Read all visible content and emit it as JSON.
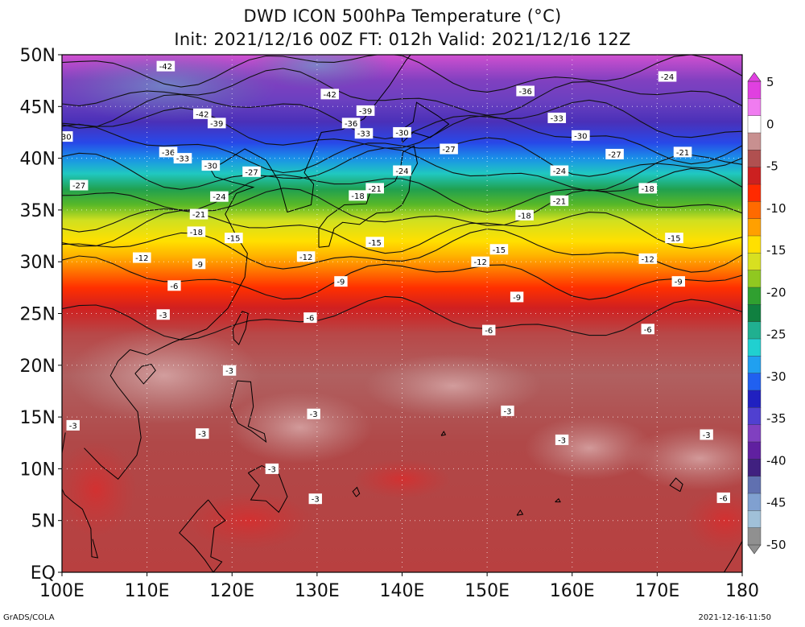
{
  "title": {
    "line1": "DWD ICON 500hPa Temperature (°C)",
    "line2": "Init: 2021/12/16 00Z  FT: 012h  Valid: 2021/12/16 12Z"
  },
  "map": {
    "lon_range": [
      100,
      180
    ],
    "lat_range": [
      0,
      50
    ],
    "x_ticks": [
      {
        "value": 100,
        "label": "100E"
      },
      {
        "value": 110,
        "label": "110E"
      },
      {
        "value": 120,
        "label": "120E"
      },
      {
        "value": 130,
        "label": "130E"
      },
      {
        "value": 140,
        "label": "140E"
      },
      {
        "value": 150,
        "label": "150E"
      },
      {
        "value": 160,
        "label": "160E"
      },
      {
        "value": 170,
        "label": "170E"
      },
      {
        "value": 180,
        "label": "180"
      }
    ],
    "y_ticks": [
      {
        "value": 50,
        "label": "50N"
      },
      {
        "value": 45,
        "label": "45N"
      },
      {
        "value": 40,
        "label": "40N"
      },
      {
        "value": 35,
        "label": "35N"
      },
      {
        "value": 30,
        "label": "30N"
      },
      {
        "value": 25,
        "label": "25N"
      },
      {
        "value": 20,
        "label": "20N"
      },
      {
        "value": 15,
        "label": "15N"
      },
      {
        "value": 10,
        "label": "10N"
      },
      {
        "value": 5,
        "label": "5N"
      },
      {
        "value": 0,
        "label": "EQ"
      }
    ],
    "grid": true
  },
  "colorbar": {
    "labels": [
      "5",
      "0",
      "-5",
      "-10",
      "-15",
      "-20",
      "-25",
      "-30",
      "-35",
      "-40",
      "-45",
      "-50"
    ],
    "bands": [
      "#e040e0",
      "#f07cf0",
      "#ffffff",
      "#c89090",
      "#b05050",
      "#cc2020",
      "#ff2a00",
      "#ff6a00",
      "#ffa000",
      "#ffe000",
      "#d8e020",
      "#90c820",
      "#30a030",
      "#108040",
      "#20b090",
      "#20d0d0",
      "#20a0f0",
      "#2060f0",
      "#2020c0",
      "#5040d0",
      "#8040c0",
      "#6020a0",
      "#402080",
      "#6070b0",
      "#80a0d0",
      "#a0c0d8",
      "#909090"
    ]
  },
  "contour_labels": [
    {
      "lon": 112.2,
      "lat": 48.9,
      "text": "-42"
    },
    {
      "lon": 102,
      "lat": 37.4,
      "text": "-27"
    },
    {
      "lon": 100.5,
      "lat": 42.1,
      "text": "30"
    },
    {
      "lon": 116.5,
      "lat": 44.3,
      "text": "-42"
    },
    {
      "lon": 118.2,
      "lat": 43.4,
      "text": "-39"
    },
    {
      "lon": 112.5,
      "lat": 40.6,
      "text": "-36"
    },
    {
      "lon": 114.2,
      "lat": 40,
      "text": "-33"
    },
    {
      "lon": 117.5,
      "lat": 39.3,
      "text": "-30"
    },
    {
      "lon": 122.3,
      "lat": 38.7,
      "text": "-27"
    },
    {
      "lon": 118.5,
      "lat": 36.3,
      "text": "-24"
    },
    {
      "lon": 116.1,
      "lat": 34.6,
      "text": "-21"
    },
    {
      "lon": 115.8,
      "lat": 32.9,
      "text": "-18"
    },
    {
      "lon": 120.2,
      "lat": 32.3,
      "text": "-15"
    },
    {
      "lon": 109.4,
      "lat": 30.4,
      "text": "-12"
    },
    {
      "lon": 116.1,
      "lat": 29.8,
      "text": "-9"
    },
    {
      "lon": 113.2,
      "lat": 27.7,
      "text": "-6"
    },
    {
      "lon": 111.9,
      "lat": 24.9,
      "text": "-3"
    },
    {
      "lon": 131.5,
      "lat": 46.2,
      "text": "-42"
    },
    {
      "lon": 135.7,
      "lat": 44.6,
      "text": "-39"
    },
    {
      "lon": 134,
      "lat": 43.4,
      "text": "-36"
    },
    {
      "lon": 135.5,
      "lat": 42.4,
      "text": "-33"
    },
    {
      "lon": 140,
      "lat": 42.5,
      "text": "-30"
    },
    {
      "lon": 145.5,
      "lat": 40.9,
      "text": "-27"
    },
    {
      "lon": 140,
      "lat": 38.8,
      "text": "-24"
    },
    {
      "lon": 136.8,
      "lat": 37.1,
      "text": "-21"
    },
    {
      "lon": 134.8,
      "lat": 36.4,
      "text": "-18"
    },
    {
      "lon": 136.8,
      "lat": 31.9,
      "text": "-15"
    },
    {
      "lon": 128.7,
      "lat": 30.5,
      "text": "-12"
    },
    {
      "lon": 132.8,
      "lat": 28.1,
      "text": "-9"
    },
    {
      "lon": 129.2,
      "lat": 24.6,
      "text": "-6"
    },
    {
      "lon": 154.5,
      "lat": 46.5,
      "text": "-36"
    },
    {
      "lon": 158.2,
      "lat": 43.9,
      "text": "-33"
    },
    {
      "lon": 161,
      "lat": 42.2,
      "text": "-30"
    },
    {
      "lon": 165,
      "lat": 40.4,
      "text": "-27"
    },
    {
      "lon": 158.5,
      "lat": 38.8,
      "text": "-24"
    },
    {
      "lon": 158.5,
      "lat": 35.9,
      "text": "-21"
    },
    {
      "lon": 154.4,
      "lat": 34.5,
      "text": "-18"
    },
    {
      "lon": 151.4,
      "lat": 31.2,
      "text": "-15"
    },
    {
      "lon": 149.2,
      "lat": 30,
      "text": "-12"
    },
    {
      "lon": 153.5,
      "lat": 26.6,
      "text": "-9"
    },
    {
      "lon": 150.2,
      "lat": 23.4,
      "text": "-6"
    },
    {
      "lon": 171.2,
      "lat": 47.9,
      "text": "-24"
    },
    {
      "lon": 173,
      "lat": 40.6,
      "text": "-21"
    },
    {
      "lon": 168.9,
      "lat": 37.1,
      "text": "-18"
    },
    {
      "lon": 172,
      "lat": 32.3,
      "text": "-15"
    },
    {
      "lon": 168.9,
      "lat": 30.3,
      "text": "-12"
    },
    {
      "lon": 172.5,
      "lat": 28.1,
      "text": "-9"
    },
    {
      "lon": 168.9,
      "lat": 23.5,
      "text": "-6"
    },
    {
      "lon": 119.7,
      "lat": 19.5,
      "text": "-3"
    },
    {
      "lon": 101.3,
      "lat": 14.2,
      "text": "-3"
    },
    {
      "lon": 129.6,
      "lat": 15.3,
      "text": "-3"
    },
    {
      "lon": 116.5,
      "lat": 13.4,
      "text": "-3"
    },
    {
      "lon": 124.7,
      "lat": 10,
      "text": "-3"
    },
    {
      "lon": 129.8,
      "lat": 7.1,
      "text": "-3"
    },
    {
      "lon": 152.4,
      "lat": 15.6,
      "text": "-3"
    },
    {
      "lon": 158.8,
      "lat": 12.8,
      "text": "-3"
    },
    {
      "lon": 175.8,
      "lat": 13.3,
      "text": "-3"
    },
    {
      "lon": 177.8,
      "lat": 7.2,
      "text": "-6"
    }
  ],
  "footer": {
    "left": "GrADS/COLA",
    "right": "2021-12-16-11:50"
  }
}
